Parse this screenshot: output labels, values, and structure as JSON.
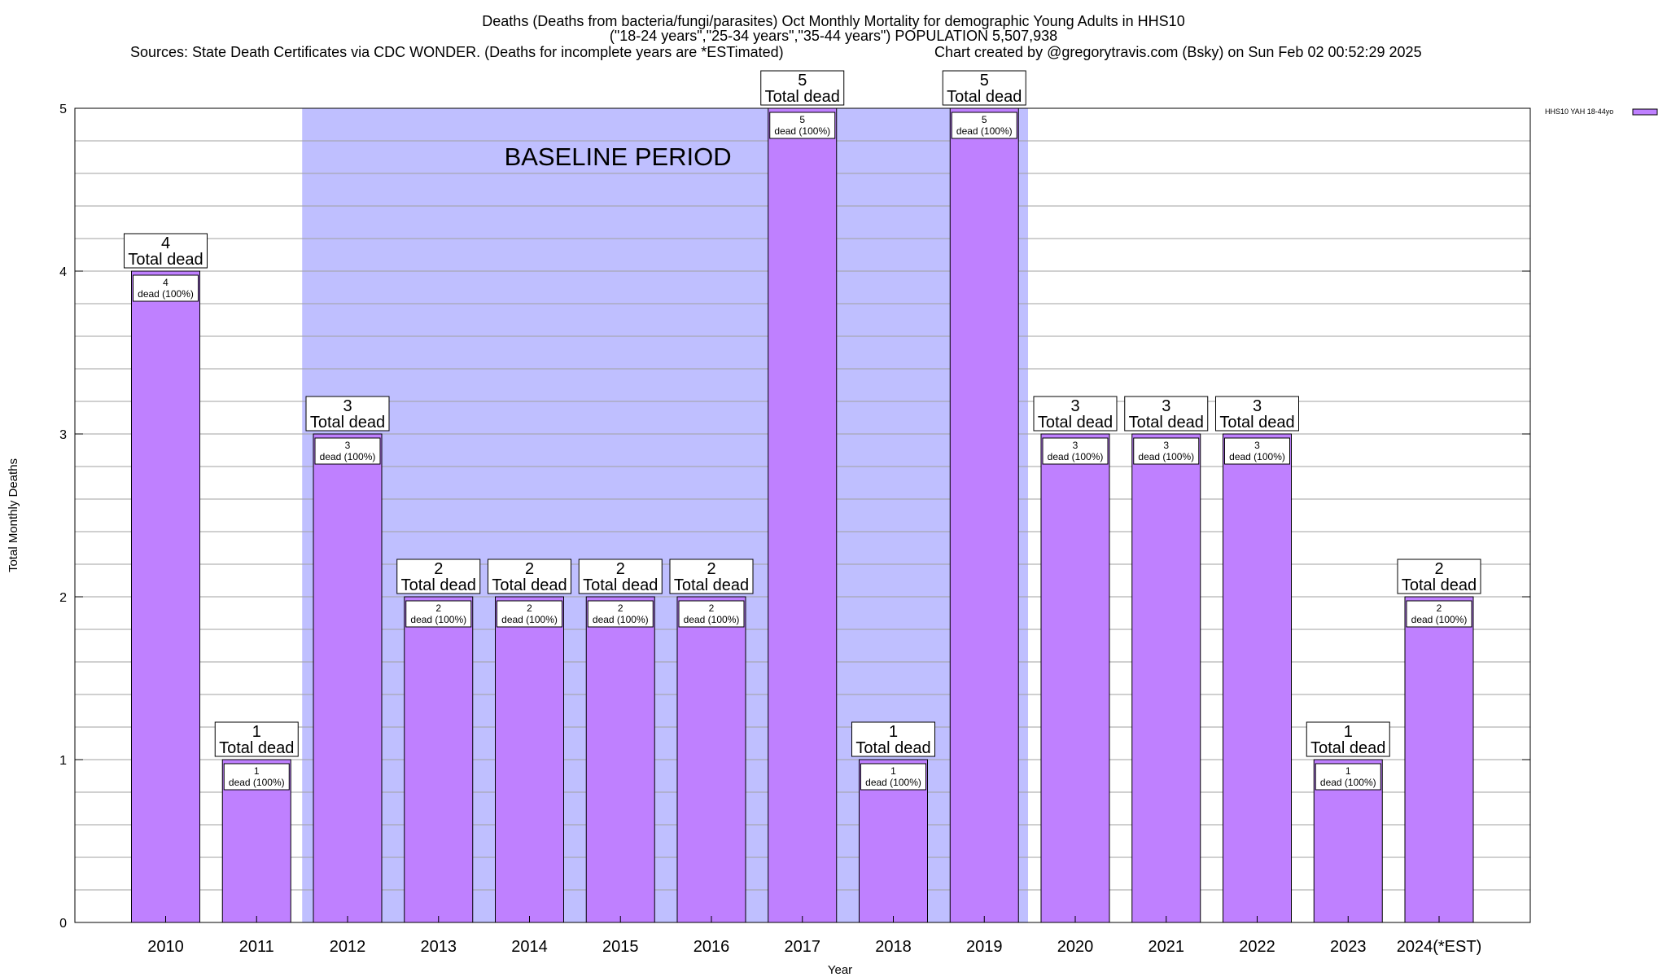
{
  "title": {
    "line1": "Deaths (Deaths from bacteria/fungi/parasites) Oct Monthly Mortality for demographic Young Adults in HHS10",
    "line2": "(\"18-24 years\",\"25-34 years\",\"35-44 years\") POPULATION 5,507,938",
    "source": "Sources: State Death Certificates via CDC WONDER. (Deaths for incomplete years are *ESTimated)",
    "credit": "Chart created by @gregorytravis.com (Bsky) on Sun Feb 02 00:52:29 2025"
  },
  "colors": {
    "bar": "#bf80ff",
    "baseline_shade": "#bfbfff",
    "grid": "#a0a0a0"
  },
  "chart_data": {
    "type": "bar",
    "xlabel": "Year",
    "ylabel": "Total Monthly Deaths",
    "ylim": [
      0,
      5
    ],
    "yticks": [
      "0",
      "1",
      "2",
      "3",
      "4",
      "5"
    ],
    "grid": true,
    "legend_position": "top-right",
    "categories": [
      "2010",
      "2011",
      "2012",
      "2013",
      "2014",
      "2015",
      "2016",
      "2017",
      "2018",
      "2019",
      "2020",
      "2021",
      "2022",
      "2023",
      "2024(*EST)"
    ],
    "series": [
      {
        "name": "HHS10 YAH 18-44yo",
        "values": [
          4,
          1,
          3,
          2,
          2,
          2,
          2,
          5,
          1,
          5,
          3,
          3,
          3,
          1,
          2
        ]
      }
    ],
    "total_label_suffix": "Total dead",
    "inner_label_suffix": "dead (100%)",
    "annotation": {
      "text": "BASELINE PERIOD",
      "range": [
        "2012",
        "2019"
      ]
    }
  }
}
